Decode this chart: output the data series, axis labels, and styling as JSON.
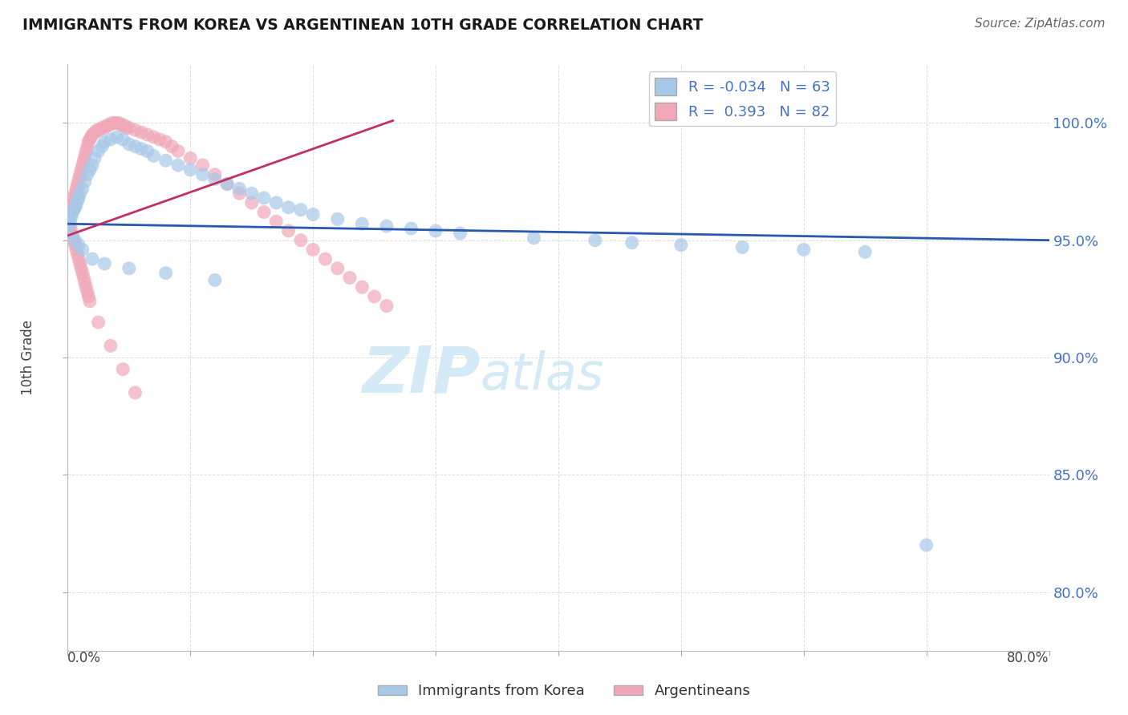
{
  "title": "IMMIGRANTS FROM KOREA VS ARGENTINEAN 10TH GRADE CORRELATION CHART",
  "source": "Source: ZipAtlas.com",
  "ylabel": "10th Grade",
  "y_tick_labels": [
    "100.0%",
    "95.0%",
    "90.0%",
    "85.0%",
    "80.0%"
  ],
  "y_tick_values": [
    1.0,
    0.95,
    0.9,
    0.85,
    0.8
  ],
  "x_range": [
    0.0,
    0.8
  ],
  "y_range": [
    0.775,
    1.025
  ],
  "legend_r_blue": "-0.034",
  "legend_n_blue": "63",
  "legend_r_pink": "0.393",
  "legend_n_pink": "82",
  "blue_color": "#a8c8e8",
  "pink_color": "#f0a8b8",
  "trendline_blue_color": "#2858b0",
  "trendline_pink_color": "#c03060",
  "watermark_text": "ZIPatlas",
  "watermark_color": "#d0e8f5",
  "grid_color": "#dddddd",
  "title_color": "#1a1a1a",
  "source_color": "#666666",
  "axis_label_color": "#4472c4",
  "blue_scatter_x": [
    0.001,
    0.002,
    0.003,
    0.004,
    0.005,
    0.006,
    0.007,
    0.008,
    0.009,
    0.01,
    0.012,
    0.014,
    0.016,
    0.018,
    0.02,
    0.022,
    0.025,
    0.028,
    0.03,
    0.035,
    0.04,
    0.045,
    0.05,
    0.055,
    0.06,
    0.065,
    0.07,
    0.08,
    0.09,
    0.1,
    0.11,
    0.12,
    0.13,
    0.14,
    0.15,
    0.16,
    0.17,
    0.18,
    0.19,
    0.2,
    0.22,
    0.24,
    0.26,
    0.28,
    0.3,
    0.32,
    0.38,
    0.43,
    0.46,
    0.5,
    0.55,
    0.6,
    0.65,
    0.7,
    0.003,
    0.006,
    0.009,
    0.012,
    0.02,
    0.03,
    0.05,
    0.08,
    0.12
  ],
  "blue_scatter_y": [
    0.957,
    0.958,
    0.96,
    0.962,
    0.963,
    0.964,
    0.965,
    0.967,
    0.968,
    0.97,
    0.972,
    0.975,
    0.978,
    0.98,
    0.982,
    0.985,
    0.988,
    0.99,
    0.992,
    0.993,
    0.994,
    0.993,
    0.991,
    0.99,
    0.989,
    0.988,
    0.986,
    0.984,
    0.982,
    0.98,
    0.978,
    0.976,
    0.974,
    0.972,
    0.97,
    0.968,
    0.966,
    0.964,
    0.963,
    0.961,
    0.959,
    0.957,
    0.956,
    0.955,
    0.954,
    0.953,
    0.951,
    0.95,
    0.949,
    0.948,
    0.947,
    0.946,
    0.945,
    0.82,
    0.952,
    0.95,
    0.948,
    0.946,
    0.942,
    0.94,
    0.938,
    0.936,
    0.933
  ],
  "pink_scatter_x": [
    0.001,
    0.002,
    0.003,
    0.004,
    0.005,
    0.006,
    0.007,
    0.008,
    0.009,
    0.01,
    0.011,
    0.012,
    0.013,
    0.014,
    0.015,
    0.016,
    0.017,
    0.018,
    0.019,
    0.02,
    0.022,
    0.024,
    0.026,
    0.028,
    0.03,
    0.032,
    0.034,
    0.036,
    0.038,
    0.04,
    0.042,
    0.044,
    0.046,
    0.048,
    0.05,
    0.055,
    0.06,
    0.065,
    0.07,
    0.075,
    0.08,
    0.085,
    0.09,
    0.1,
    0.11,
    0.12,
    0.13,
    0.14,
    0.15,
    0.16,
    0.17,
    0.18,
    0.19,
    0.2,
    0.21,
    0.22,
    0.23,
    0.24,
    0.25,
    0.26,
    0.001,
    0.002,
    0.003,
    0.004,
    0.005,
    0.006,
    0.007,
    0.008,
    0.009,
    0.01,
    0.011,
    0.012,
    0.013,
    0.014,
    0.015,
    0.016,
    0.017,
    0.018,
    0.025,
    0.035,
    0.045,
    0.055
  ],
  "pink_scatter_y": [
    0.96,
    0.962,
    0.964,
    0.966,
    0.968,
    0.97,
    0.972,
    0.974,
    0.976,
    0.978,
    0.98,
    0.982,
    0.984,
    0.986,
    0.988,
    0.99,
    0.992,
    0.993,
    0.994,
    0.995,
    0.996,
    0.997,
    0.997,
    0.998,
    0.998,
    0.999,
    0.999,
    1.0,
    1.0,
    1.0,
    1.0,
    0.999,
    0.999,
    0.998,
    0.998,
    0.997,
    0.996,
    0.995,
    0.994,
    0.993,
    0.992,
    0.99,
    0.988,
    0.985,
    0.982,
    0.978,
    0.974,
    0.97,
    0.966,
    0.962,
    0.958,
    0.954,
    0.95,
    0.946,
    0.942,
    0.938,
    0.934,
    0.93,
    0.926,
    0.922,
    0.958,
    0.956,
    0.954,
    0.952,
    0.95,
    0.948,
    0.946,
    0.944,
    0.942,
    0.94,
    0.938,
    0.936,
    0.934,
    0.932,
    0.93,
    0.928,
    0.926,
    0.924,
    0.915,
    0.905,
    0.895,
    0.885
  ],
  "blue_trendline_x": [
    0.0,
    0.8
  ],
  "blue_trendline_y": [
    0.957,
    0.95
  ],
  "pink_trendline_x": [
    0.0,
    0.265
  ],
  "pink_trendline_y": [
    0.952,
    1.001
  ]
}
